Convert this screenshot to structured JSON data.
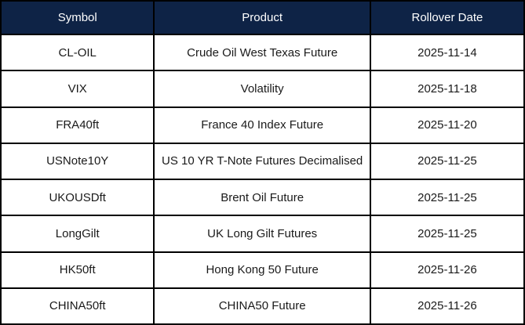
{
  "colors": {
    "header-bg": "#0e2346",
    "header-text": "#ffffff",
    "row-bg": "#ffffff",
    "body-text": "#1a1a1a",
    "border": "#000000"
  },
  "table": {
    "columns": [
      {
        "label": "Symbol"
      },
      {
        "label": "Product"
      },
      {
        "label": "Rollover Date"
      }
    ],
    "rows": [
      {
        "symbol": "CL-OIL",
        "product": "Crude Oil West Texas Future",
        "rollover_date": "2025-11-14"
      },
      {
        "symbol": "VIX",
        "product": "Volatility",
        "rollover_date": "2025-11-18"
      },
      {
        "symbol": "FRA40ft",
        "product": "France 40 Index Future",
        "rollover_date": "2025-11-20"
      },
      {
        "symbol": "USNote10Y",
        "product": "US 10 YR T-Note Futures Decimalised",
        "rollover_date": "2025-11-25"
      },
      {
        "symbol": "UKOUSDft",
        "product": "Brent Oil Future",
        "rollover_date": "2025-11-25"
      },
      {
        "symbol": "LongGilt",
        "product": "UK Long Gilt Futures",
        "rollover_date": "2025-11-25"
      },
      {
        "symbol": "HK50ft",
        "product": "Hong Kong 50 Future",
        "rollover_date": "2025-11-26"
      },
      {
        "symbol": "CHINA50ft",
        "product": "CHINA50 Future",
        "rollover_date": "2025-11-26"
      }
    ]
  },
  "chart_data": {
    "type": "table",
    "title": "",
    "columns": [
      "Symbol",
      "Product",
      "Rollover Date"
    ],
    "rows": [
      [
        "CL-OIL",
        "Crude Oil West Texas Future",
        "2025-11-14"
      ],
      [
        "VIX",
        "Volatility",
        "2025-11-18"
      ],
      [
        "FRA40ft",
        "France 40 Index Future",
        "2025-11-20"
      ],
      [
        "USNote10Y",
        "US 10 YR T-Note Futures Decimalised",
        "2025-11-25"
      ],
      [
        "UKOUSDft",
        "Brent Oil Future",
        "2025-11-25"
      ],
      [
        "LongGilt",
        "UK Long Gilt Futures",
        "2025-11-25"
      ],
      [
        "HK50ft",
        "Hong Kong 50 Future",
        "2025-11-26"
      ],
      [
        "CHINA50ft",
        "CHINA50 Future",
        "2025-11-26"
      ]
    ]
  }
}
